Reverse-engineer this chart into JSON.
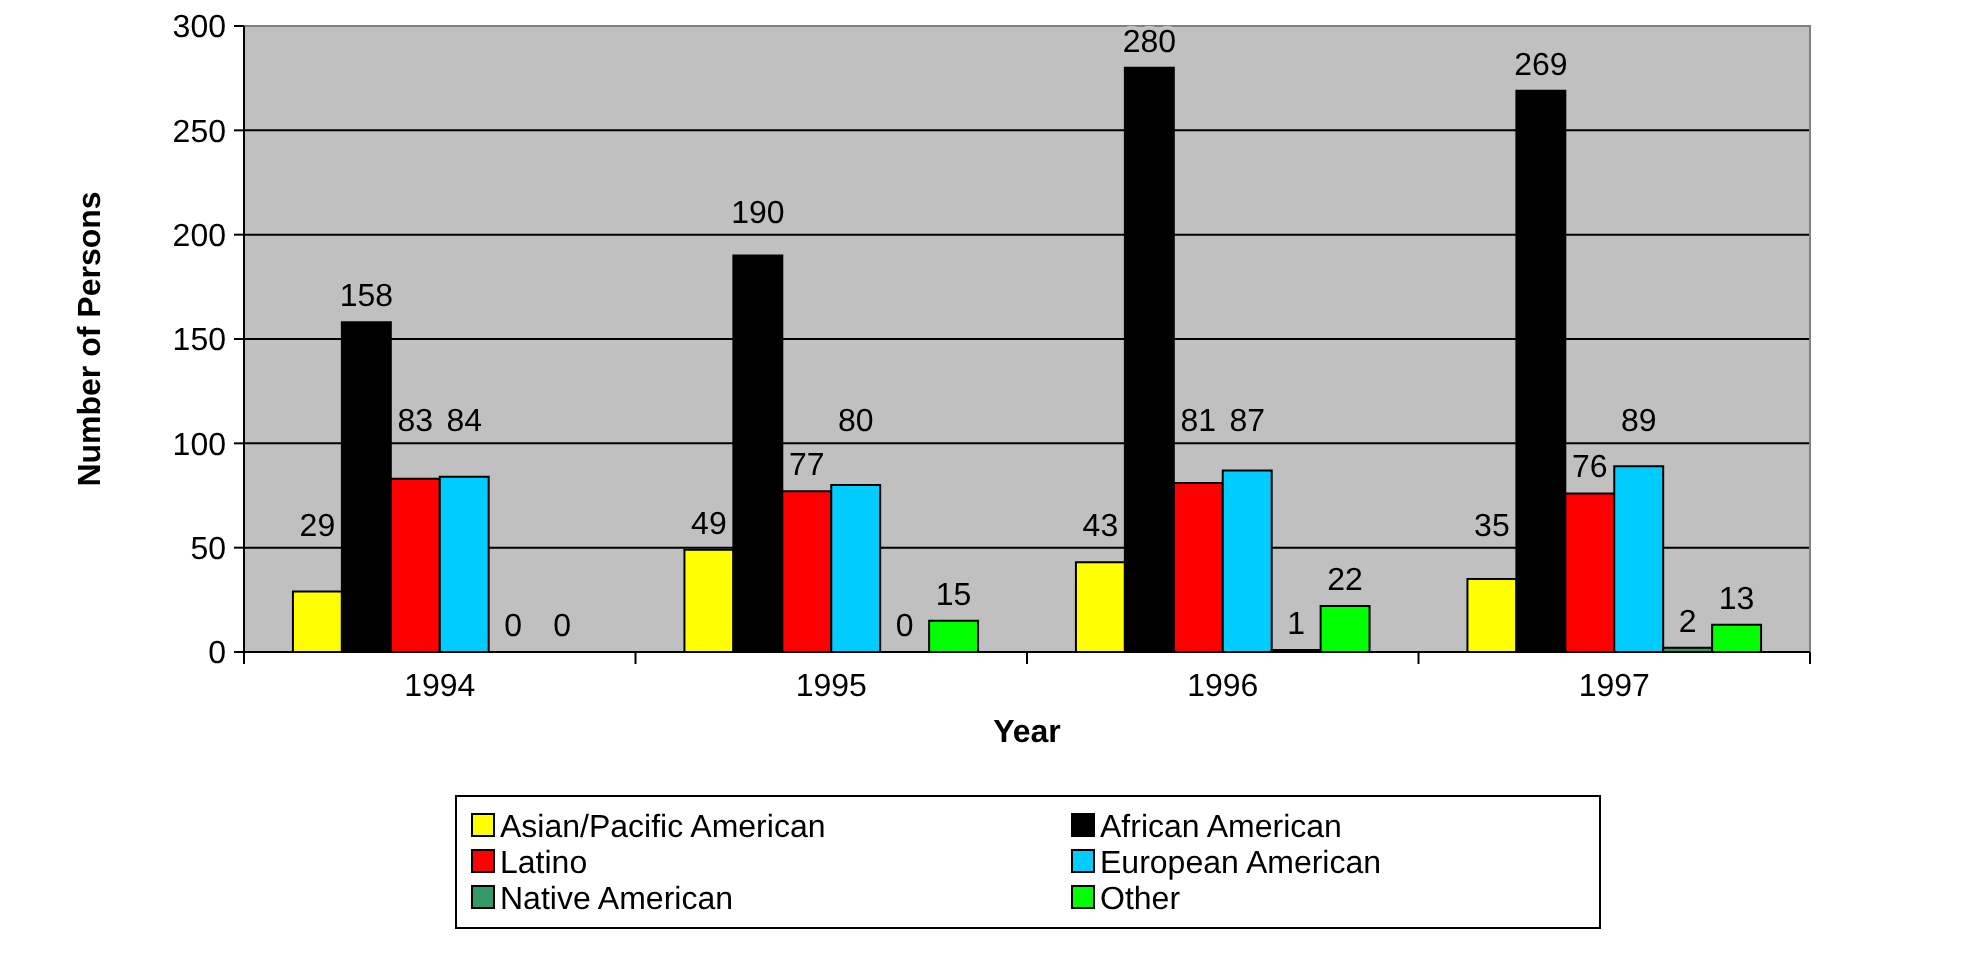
{
  "chart_data": {
    "type": "bar",
    "xlabel": "Year",
    "ylabel": "Number of Persons",
    "categories": [
      "1994",
      "1995",
      "1996",
      "1997"
    ],
    "series": [
      {
        "name": "Asian/Pacific American",
        "color": "#ffff00",
        "values": [
          29,
          49,
          43,
          35
        ]
      },
      {
        "name": "African American",
        "color": "#000000",
        "values": [
          158,
          190,
          280,
          269
        ]
      },
      {
        "name": "Latino",
        "color": "#ff0000",
        "values": [
          83,
          77,
          81,
          76
        ]
      },
      {
        "name": "European American",
        "color": "#00ccff",
        "values": [
          84,
          80,
          87,
          89
        ]
      },
      {
        "name": "Native American",
        "color": "#339966",
        "values": [
          0,
          0,
          1,
          2
        ]
      },
      {
        "name": "Other",
        "color": "#00ff00",
        "values": [
          0,
          15,
          22,
          13
        ]
      }
    ],
    "ylim": [
      0,
      300
    ],
    "yticks": [
      0,
      50,
      100,
      150,
      200,
      250,
      300
    ],
    "grid": "y",
    "legend": "bottom",
    "data_labels": true
  }
}
